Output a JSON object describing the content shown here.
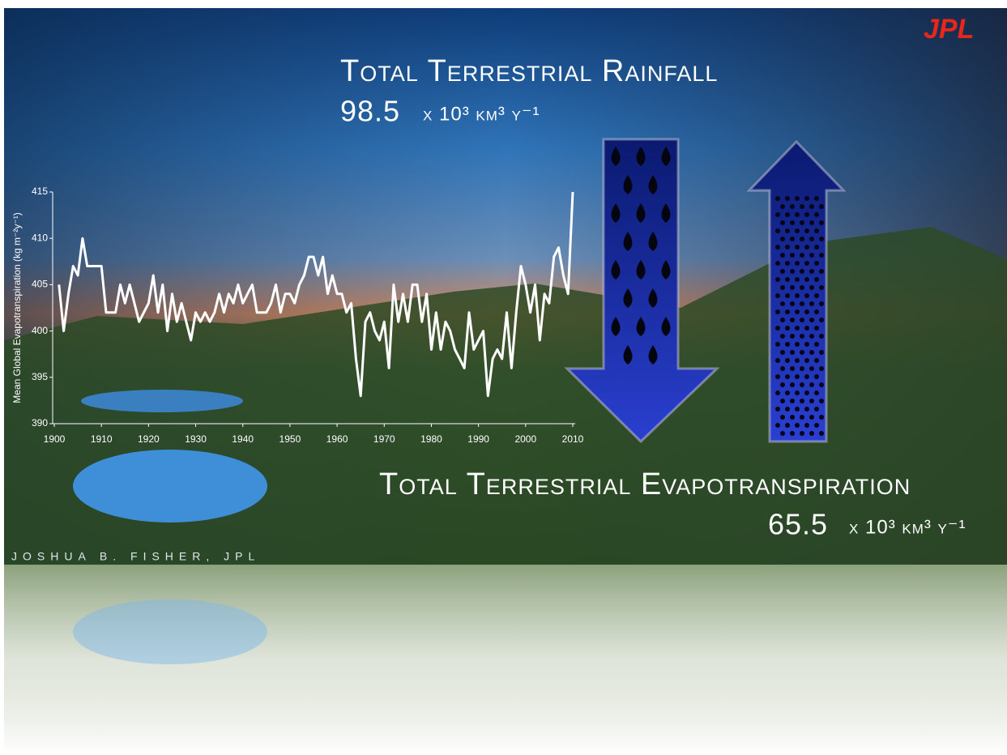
{
  "chart_data": {
    "type": "line",
    "ylabel": "Mean Global Evapotranspiration (kg m⁻²y⁻¹)",
    "x": [
      1901,
      1902,
      1903,
      1904,
      1905,
      1906,
      1907,
      1908,
      1909,
      1910,
      1911,
      1912,
      1913,
      1914,
      1915,
      1916,
      1917,
      1918,
      1919,
      1920,
      1921,
      1922,
      1923,
      1924,
      1925,
      1926,
      1927,
      1928,
      1929,
      1930,
      1931,
      1932,
      1933,
      1934,
      1935,
      1936,
      1937,
      1938,
      1939,
      1940,
      1941,
      1942,
      1943,
      1944,
      1945,
      1946,
      1947,
      1948,
      1949,
      1950,
      1951,
      1952,
      1953,
      1954,
      1955,
      1956,
      1957,
      1958,
      1959,
      1960,
      1961,
      1962,
      1963,
      1964,
      1965,
      1966,
      1967,
      1968,
      1969,
      1970,
      1971,
      1972,
      1973,
      1974,
      1975,
      1976,
      1977,
      1978,
      1979,
      1980,
      1981,
      1982,
      1983,
      1984,
      1985,
      1986,
      1987,
      1988,
      1989,
      1990,
      1991,
      1992,
      1993,
      1994,
      1995,
      1996,
      1997,
      1998,
      1999,
      2000,
      2001,
      2002,
      2003,
      2004,
      2005,
      2006,
      2007,
      2008,
      2009,
      2010
    ],
    "values": [
      405,
      400,
      404,
      407,
      406,
      410,
      407,
      407,
      407,
      407,
      402,
      402,
      402,
      405,
      403,
      405,
      403,
      401,
      402,
      403,
      406,
      402,
      405,
      400,
      404,
      401,
      403,
      401,
      399,
      402,
      401,
      402,
      401,
      402,
      404,
      402,
      404,
      403,
      405,
      403,
      404,
      405,
      402,
      402,
      402,
      403,
      405,
      402,
      404,
      404,
      403,
      405,
      406,
      408,
      408,
      406,
      408,
      404,
      406,
      404,
      404,
      402,
      403,
      397,
      393,
      401,
      402,
      400,
      399,
      401,
      396,
      405,
      401,
      404,
      401,
      405,
      405,
      401,
      404,
      398,
      402,
      398,
      401,
      400,
      398,
      397,
      396,
      402,
      398,
      399,
      400,
      393,
      397,
      398,
      397,
      402,
      396,
      402,
      407,
      405,
      402,
      405,
      399,
      404,
      403,
      408,
      409,
      406,
      404,
      415
    ],
    "color": "#ffffff",
    "xlim": [
      1900,
      2010
    ],
    "xticks": [
      1900,
      1910,
      1920,
      1930,
      1940,
      1950,
      1960,
      1970,
      1980,
      1990,
      2000,
      2010
    ],
    "ylim": [
      390,
      415
    ],
    "yticks": [
      390,
      395,
      400,
      405,
      410,
      415
    ]
  },
  "logo": "JPL",
  "rainfall": {
    "title": "Total Terrestrial Rainfall",
    "value": "98.5",
    "units": "x 10³ km³ y⁻¹"
  },
  "evapotranspiration": {
    "title": "Total Terrestrial Evapotranspiration",
    "value": "65.5",
    "units": "x 10³ km³ y⁻¹"
  },
  "credit": "JOSHUA B. FISHER, JPL"
}
